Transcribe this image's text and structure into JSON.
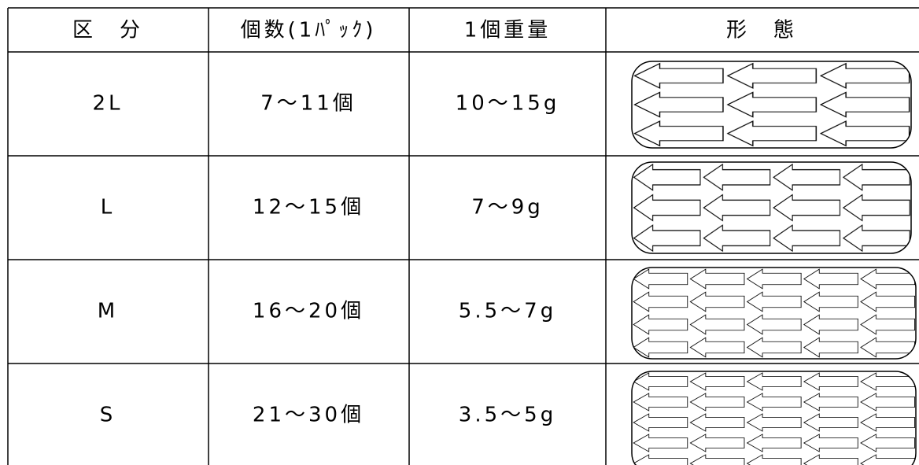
{
  "table": {
    "header": [
      "区　分",
      "個数(1ﾊﾟｯｸ)",
      "1個重量",
      "形　態"
    ],
    "rows": [
      [
        "2L",
        "7～11個",
        "10～15g"
      ],
      [
        "L",
        "12～15個",
        "7～9g"
      ],
      [
        "M",
        "16～20個",
        "5.5～7g"
      ],
      [
        "S",
        "21～30個",
        "3.5～5g"
      ]
    ]
  }
}
